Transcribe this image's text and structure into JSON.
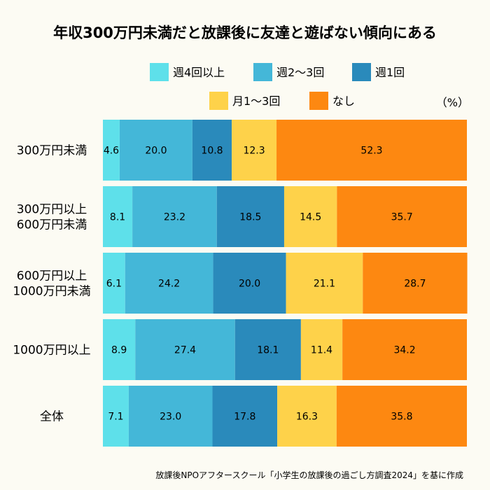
{
  "chart_data": {
    "type": "bar",
    "orientation": "horizontal",
    "stacked": true,
    "title": "年収300万円未満だと放課後に友達と遊ばない傾向にある",
    "unit_label": "（%）",
    "categories": [
      [
        "300万円未満"
      ],
      [
        "300万円以上",
        "600万円未満"
      ],
      [
        "600万円以上",
        "1000万円未満"
      ],
      [
        "1000万円以上"
      ],
      [
        "全体"
      ]
    ],
    "series": [
      {
        "name": "週4回以上",
        "color": "#5ee0ea",
        "values": [
          4.6,
          8.1,
          6.1,
          8.9,
          7.1
        ]
      },
      {
        "name": "週2〜3回",
        "color": "#44b7d8",
        "values": [
          20.0,
          23.2,
          24.2,
          27.4,
          23.0
        ]
      },
      {
        "name": "週1回",
        "color": "#2a8abb",
        "values": [
          10.8,
          18.5,
          20.0,
          18.1,
          17.8
        ]
      },
      {
        "name": "月1〜3回",
        "color": "#fed24a",
        "values": [
          12.3,
          14.5,
          21.1,
          11.4,
          16.3
        ]
      },
      {
        "name": "なし",
        "color": "#fd8811",
        "values": [
          52.3,
          35.7,
          28.7,
          34.2,
          35.8
        ]
      }
    ],
    "xlim": [
      0,
      100
    ],
    "source": "放課後NPOアフタースクール「小学生の放課後の過ごし方調査2024」を基に作成"
  }
}
